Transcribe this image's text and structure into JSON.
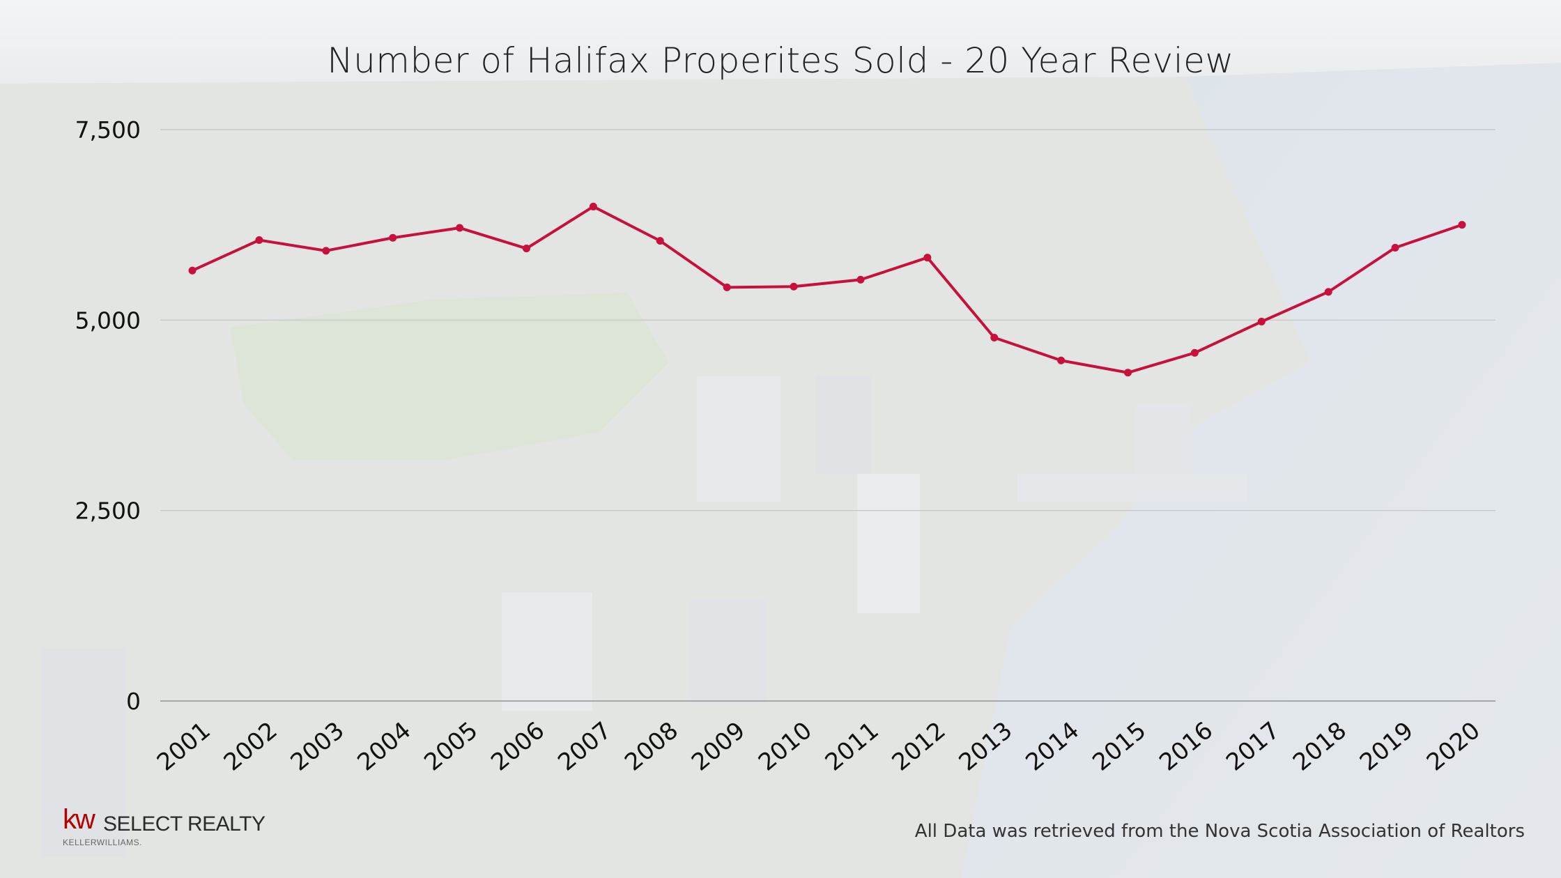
{
  "chart_data": {
    "type": "line",
    "title": "Number of Halifax Properites Sold - 20 Year Review",
    "categories": [
      "2001",
      "2002",
      "2003",
      "2004",
      "2005",
      "2006",
      "2007",
      "2008",
      "2009",
      "2010",
      "2011",
      "2012",
      "2013",
      "2014",
      "2015",
      "2016",
      "2017",
      "2018",
      "2019",
      "2020"
    ],
    "series": [
      {
        "values": [
          5650,
          6050,
          5910,
          6080,
          6210,
          5940,
          6490,
          6040,
          5430,
          5440,
          5530,
          5820,
          4770,
          4470,
          4310,
          4570,
          4980,
          5370,
          5950,
          6250
        ],
        "color": "#c8103e"
      }
    ],
    "xlabel": "",
    "ylabel": "",
    "ylim": [
      0,
      7500
    ],
    "yticks": [
      0,
      2500,
      5000,
      7500
    ],
    "ytick_labels": [
      "0",
      "2,500",
      "5,000",
      "7,500"
    ],
    "grid": "horizontal",
    "legend": "none"
  },
  "footer": {
    "source_note": "All Data was retrieved from the Nova Scotia Association of Realtors"
  },
  "logo": {
    "mark": "kw",
    "brand": "SELECT REALTY",
    "sub": "KELLERWILLIAMS."
  },
  "colors": {
    "line": "#c8103e",
    "grid": "#bfc3c6",
    "logo_red": "#b40101"
  }
}
